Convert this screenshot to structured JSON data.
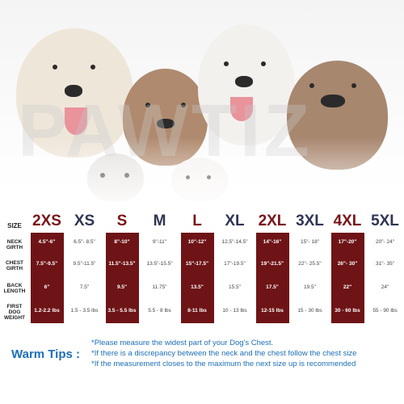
{
  "watermark": "PAWTIZ",
  "table": {
    "row_labels": {
      "size": "SIZE",
      "neck": "NECK GIRTH",
      "chest": "CHEST GIRTH",
      "back": "BACK LENGTH",
      "weight": "FIRST DOG WEIGHT"
    },
    "columns": [
      {
        "size": "2XS",
        "neck": "4.5\"-6\"",
        "chest": "7.5\"-9.5\"",
        "back": "6\"",
        "weight": "1.2-2.2 lbs",
        "highlight": true
      },
      {
        "size": "XS",
        "neck": "6.5\"- 8.5\"",
        "chest": "9.5\"-11.5\"",
        "back": "7.5\"",
        "weight": "1.5 - 3.5 lbs",
        "highlight": false
      },
      {
        "size": "S",
        "neck": "8\"-10\"",
        "chest": "11.5\"-13.5\"",
        "back": "9.5\"",
        "weight": "3.5 - 5.5 lbs",
        "highlight": true
      },
      {
        "size": "M",
        "neck": "9\"-11\"",
        "chest": "13.5\"-15.5\"",
        "back": "11.75\"",
        "weight": "5.5 - 8 lbs",
        "highlight": false
      },
      {
        "size": "L",
        "neck": "10\"-12\"",
        "chest": "15\"-17.5\"",
        "back": "13.5\"",
        "weight": "8-11 lbs",
        "highlight": true
      },
      {
        "size": "XL",
        "neck": "12.5\"-14.5\"",
        "chest": "17\"-19.5\"",
        "back": "15.5\"",
        "weight": "10 - 13 lbs",
        "highlight": false
      },
      {
        "size": "2XL",
        "neck": "14\"-16\"",
        "chest": "19\"-21.5\"",
        "back": "17.5\"",
        "weight": "12-15 lbs",
        "highlight": true
      },
      {
        "size": "3XL",
        "neck": "15\"- 18\"",
        "chest": "22\"- 25.5\"",
        "back": "19.5\"",
        "weight": "15 - 30 lbs",
        "highlight": false
      },
      {
        "size": "4XL",
        "neck": "17\"-20\"",
        "chest": "26\"- 30\"",
        "back": "22\"",
        "weight": "30 - 60 lbs",
        "highlight": true
      },
      {
        "size": "5XL",
        "neck": "20\"- 24\"",
        "chest": "31\"- 35\"",
        "back": "24\"",
        "weight": "55 - 90 lbs",
        "highlight": false
      }
    ]
  },
  "tips": {
    "title": "Warm Tips :",
    "lines": [
      "*Please measure the widest part of your Dog's Chest.",
      "*If there is a discrepancy between the neck and the chest  follow the chest size",
      "*If the measurement closes to the maximum the next size up is recommended"
    ]
  },
  "colors": {
    "highlight_bg": "#6e1416",
    "size_red": "#7a1517",
    "size_navy": "#2f3554",
    "tips_blue": "#1c6fb8"
  }
}
